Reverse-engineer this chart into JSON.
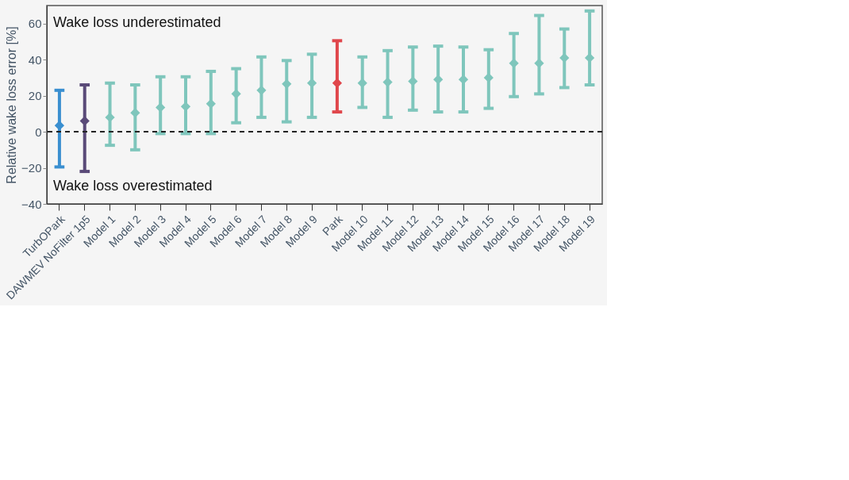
{
  "chart_data": {
    "type": "scatter",
    "ylabel": "Relative wake loss error [%]",
    "categories": [
      "TurbOPark",
      "DAWMEV NoFilter 1p5",
      "Model 1",
      "Model 2",
      "Model 3",
      "Model 4",
      "Model 5",
      "Model 6",
      "Model 7",
      "Model 8",
      "Model 9",
      "Park",
      "Model 10",
      "Model 11",
      "Model 12",
      "Model 13",
      "Model 14",
      "Model 15",
      "Model 16",
      "Model 17",
      "Model 18",
      "Model 19"
    ],
    "values": [
      3.5,
      6,
      8,
      10.5,
      13.5,
      14,
      15.5,
      21,
      23,
      26.5,
      27,
      27,
      27,
      27.5,
      28,
      29,
      29,
      30,
      38,
      38,
      41,
      41
    ],
    "errors": [
      [
        -19.5,
        23
      ],
      [
        -22,
        26
      ],
      [
        -7.5,
        27
      ],
      [
        -10,
        26
      ],
      [
        -1,
        30.5
      ],
      [
        -1,
        30.5
      ],
      [
        -1,
        33.5
      ],
      [
        5,
        35
      ],
      [
        8,
        41.5
      ],
      [
        5.5,
        39.5
      ],
      [
        8,
        43
      ],
      [
        11,
        50.5
      ],
      [
        13.5,
        41.5
      ],
      [
        8,
        45
      ],
      [
        12,
        47
      ],
      [
        11,
        47.5
      ],
      [
        11,
        47
      ],
      [
        13,
        45.5
      ],
      [
        19.5,
        54.5
      ],
      [
        21,
        64.5
      ],
      [
        24.5,
        57
      ],
      [
        26,
        67
      ]
    ],
    "colors": [
      "#3a8fd0",
      "#5a4a78",
      "#7fc6bc",
      "#7fc6bc",
      "#7fc6bc",
      "#7fc6bc",
      "#7fc6bc",
      "#7fc6bc",
      "#7fc6bc",
      "#7fc6bc",
      "#7fc6bc",
      "#e0474c",
      "#7fc6bc",
      "#7fc6bc",
      "#7fc6bc",
      "#7fc6bc",
      "#7fc6bc",
      "#7fc6bc",
      "#7fc6bc",
      "#7fc6bc",
      "#7fc6bc",
      "#7fc6bc"
    ],
    "marker": "diamond",
    "ylim": [
      -40,
      70
    ],
    "yticks": [
      -40,
      -20,
      0,
      20,
      40,
      60
    ],
    "ref_lines": [
      {
        "axis": "y",
        "value": 0,
        "line_style": "dashed",
        "color": "#222222"
      }
    ],
    "annotations": [
      "Wake loss underestimated",
      "Wake loss overestimated"
    ],
    "grid": false
  }
}
